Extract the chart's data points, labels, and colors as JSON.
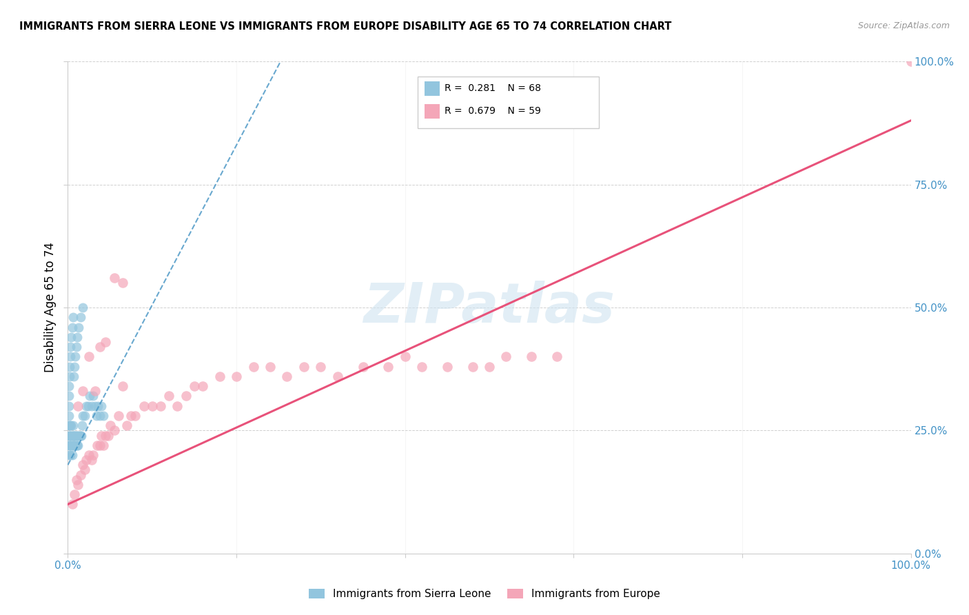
{
  "title": "IMMIGRANTS FROM SIERRA LEONE VS IMMIGRANTS FROM EUROPE DISABILITY AGE 65 TO 74 CORRELATION CHART",
  "source": "Source: ZipAtlas.com",
  "ylabel": "Disability Age 65 to 74",
  "xlim": [
    0,
    1.0
  ],
  "ylim": [
    0,
    1.0
  ],
  "ytick_labels": [
    "0.0%",
    "25.0%",
    "50.0%",
    "75.0%",
    "100.0%"
  ],
  "ytick_positions": [
    0.0,
    0.25,
    0.5,
    0.75,
    1.0
  ],
  "legend_label1": "Immigrants from Sierra Leone",
  "legend_label2": "Immigrants from Europe",
  "color_blue": "#92c5de",
  "color_pink": "#f4a6b8",
  "color_blue_line": "#4393c3",
  "color_pink_line": "#e8527a",
  "watermark": "ZIPatlas",
  "sierra_leone_x": [
    0.001,
    0.001,
    0.001,
    0.001,
    0.002,
    0.002,
    0.002,
    0.002,
    0.003,
    0.003,
    0.003,
    0.003,
    0.004,
    0.004,
    0.004,
    0.005,
    0.005,
    0.005,
    0.006,
    0.006,
    0.006,
    0.007,
    0.007,
    0.008,
    0.008,
    0.009,
    0.009,
    0.01,
    0.01,
    0.011,
    0.011,
    0.012,
    0.013,
    0.014,
    0.015,
    0.016,
    0.017,
    0.018,
    0.02,
    0.022,
    0.024,
    0.026,
    0.028,
    0.03,
    0.032,
    0.034,
    0.036,
    0.038,
    0.04,
    0.042,
    0.001,
    0.001,
    0.001,
    0.002,
    0.002,
    0.003,
    0.003,
    0.004,
    0.005,
    0.006,
    0.007,
    0.008,
    0.009,
    0.01,
    0.011,
    0.013,
    0.015,
    0.018
  ],
  "sierra_leone_y": [
    0.22,
    0.24,
    0.26,
    0.28,
    0.2,
    0.22,
    0.24,
    0.26,
    0.2,
    0.22,
    0.24,
    0.26,
    0.22,
    0.24,
    0.26,
    0.2,
    0.22,
    0.24,
    0.22,
    0.24,
    0.26,
    0.22,
    0.24,
    0.22,
    0.24,
    0.22,
    0.24,
    0.22,
    0.24,
    0.22,
    0.24,
    0.22,
    0.24,
    0.24,
    0.24,
    0.24,
    0.26,
    0.28,
    0.28,
    0.3,
    0.3,
    0.32,
    0.3,
    0.32,
    0.3,
    0.28,
    0.3,
    0.28,
    0.3,
    0.28,
    0.3,
    0.32,
    0.34,
    0.36,
    0.38,
    0.4,
    0.42,
    0.44,
    0.46,
    0.48,
    0.36,
    0.38,
    0.4,
    0.42,
    0.44,
    0.46,
    0.48,
    0.5
  ],
  "europe_x": [
    0.005,
    0.008,
    0.01,
    0.012,
    0.015,
    0.018,
    0.02,
    0.022,
    0.025,
    0.028,
    0.03,
    0.035,
    0.038,
    0.04,
    0.042,
    0.045,
    0.048,
    0.05,
    0.055,
    0.06,
    0.065,
    0.07,
    0.075,
    0.08,
    0.09,
    0.1,
    0.11,
    0.12,
    0.13,
    0.14,
    0.15,
    0.16,
    0.18,
    0.2,
    0.22,
    0.24,
    0.26,
    0.28,
    0.3,
    0.32,
    0.35,
    0.38,
    0.4,
    0.42,
    0.45,
    0.48,
    0.5,
    0.52,
    0.55,
    0.58,
    0.012,
    0.018,
    0.025,
    0.032,
    0.038,
    0.045,
    0.055,
    0.065,
    1.0
  ],
  "europe_y": [
    0.1,
    0.12,
    0.15,
    0.14,
    0.16,
    0.18,
    0.17,
    0.19,
    0.2,
    0.19,
    0.2,
    0.22,
    0.22,
    0.24,
    0.22,
    0.24,
    0.24,
    0.26,
    0.25,
    0.28,
    0.34,
    0.26,
    0.28,
    0.28,
    0.3,
    0.3,
    0.3,
    0.32,
    0.3,
    0.32,
    0.34,
    0.34,
    0.36,
    0.36,
    0.38,
    0.38,
    0.36,
    0.38,
    0.38,
    0.36,
    0.38,
    0.38,
    0.4,
    0.38,
    0.38,
    0.38,
    0.38,
    0.4,
    0.4,
    0.4,
    0.3,
    0.33,
    0.4,
    0.33,
    0.42,
    0.43,
    0.56,
    0.55,
    1.0
  ]
}
